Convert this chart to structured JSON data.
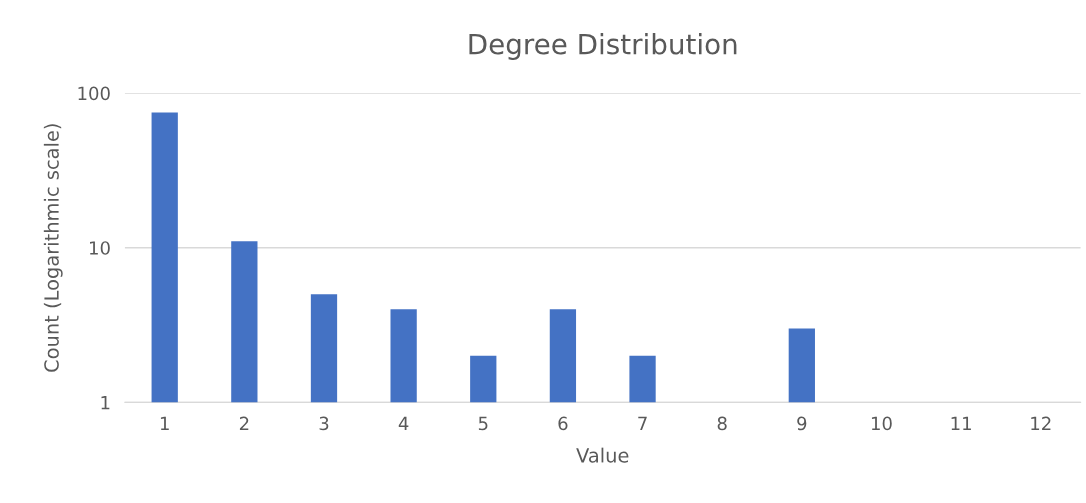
{
  "chart_data": {
    "type": "bar",
    "title": "Degree Distribution",
    "xlabel": "Value",
    "ylabel": "Count (Logarithmic scale)",
    "categories": [
      "1",
      "2",
      "3",
      "4",
      "5",
      "6",
      "7",
      "8",
      "9",
      "10",
      "11",
      "12"
    ],
    "values": [
      75,
      11,
      5,
      4,
      2,
      4,
      2,
      null,
      3,
      null,
      null,
      null
    ],
    "color": "#4472c4",
    "log": "y",
    "ylim": [
      1,
      100
    ],
    "yticks": [
      1,
      10,
      100
    ],
    "grid": "y",
    "legend": false
  }
}
